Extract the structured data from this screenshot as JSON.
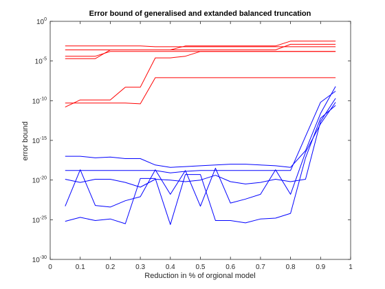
{
  "chart_data": {
    "type": "line",
    "title": "Error bound of generalised and extanded balanced truncation",
    "xlabel": "Reduction in % of orgional model",
    "ylabel": "error bound",
    "xlim": [
      0,
      1
    ],
    "ylim_exponent": [
      -30,
      0
    ],
    "yscale": "log",
    "x_ticks": [
      "0",
      "0.1",
      "0.2",
      "0.3",
      "0.4",
      "0.5",
      "0.6",
      "0.7",
      "0.8",
      "0.9",
      "1"
    ],
    "y_ticks": [
      {
        "base": "10",
        "exp": "0"
      },
      {
        "base": "10",
        "exp": "-5"
      },
      {
        "base": "10",
        "exp": "-10"
      },
      {
        "base": "10",
        "exp": "-15"
      },
      {
        "base": "10",
        "exp": "-20"
      },
      {
        "base": "10",
        "exp": "-25"
      },
      {
        "base": "10",
        "exp": "-30"
      }
    ],
    "grid": false,
    "legend": "none",
    "x": [
      0.05,
      0.1,
      0.15,
      0.2,
      0.25,
      0.3,
      0.35,
      0.4,
      0.45,
      0.5,
      0.55,
      0.6,
      0.65,
      0.7,
      0.75,
      0.8,
      0.85,
      0.9,
      0.95
    ],
    "series": [
      {
        "color": "#ff0000",
        "log10_values": [
          -3.1,
          -3.1,
          -3.1,
          -3.1,
          -3.1,
          -3.1,
          -3.2,
          -3.2,
          -3.2,
          -3.2,
          -3.2,
          -3.2,
          -3.2,
          -3.2,
          -3.2,
          -3.2,
          -3.2,
          -3.2,
          -3.2
        ]
      },
      {
        "color": "#ff0000",
        "log10_values": [
          -3.6,
          -3.6,
          -3.6,
          -3.6,
          -3.6,
          -3.6,
          -3.6,
          -3.6,
          -3.1,
          -3.1,
          -3.1,
          -3.1,
          -3.1,
          -3.1,
          -3.1,
          -2.5,
          -2.5,
          -2.5,
          -2.5
        ]
      },
      {
        "color": "#ff0000",
        "log10_values": [
          -4.4,
          -4.4,
          -4.4,
          -3.8,
          -3.8,
          -3.8,
          -3.8,
          -3.8,
          -3.8,
          -3.8,
          -3.8,
          -3.8,
          -3.8,
          -3.8,
          -3.8,
          -3.8,
          -3.8,
          -3.8,
          -3.8
        ]
      },
      {
        "color": "#ff0000",
        "log10_values": [
          -4.7,
          -4.7,
          -4.7,
          -3.6,
          -3.6,
          -3.6,
          -3.6,
          -3.6,
          -3.6,
          -3.6,
          -3.6,
          -3.6,
          -3.6,
          -3.6,
          -3.6,
          -2.9,
          -2.9,
          -2.9,
          -2.9
        ]
      },
      {
        "color": "#ff0000",
        "log10_values": [
          -10.8,
          -9.9,
          -9.9,
          -9.9,
          -8.3,
          -8.3,
          -4.6,
          -4.6,
          -4.4,
          -3.8,
          -3.8,
          -3.8,
          -3.8,
          -3.8,
          -3.8,
          -3.8,
          -3.8,
          -3.8,
          -3.8
        ]
      },
      {
        "color": "#ff0000",
        "log10_values": [
          -10.3,
          -10.3,
          -10.3,
          -10.3,
          -10.3,
          -10.4,
          -7.1,
          -7.1,
          -7.1,
          -7.1,
          -7.1,
          -7.1,
          -7.1,
          -7.1,
          -7.1,
          -7.1,
          -7.1,
          -7.1,
          -7.1
        ]
      },
      {
        "color": "#0000ff",
        "log10_values": [
          -17.0,
          -17.0,
          -17.2,
          -17.1,
          -17.3,
          -17.3,
          -18.1,
          -18.4,
          -18.3,
          -18.2,
          -18.1,
          -18.0,
          -18.0,
          -18.1,
          -18.2,
          -18.4,
          -16.3,
          -11.6,
          -8.2
        ]
      },
      {
        "color": "#0000ff",
        "log10_values": [
          -18.8,
          -18.8,
          -18.8,
          -18.8,
          -18.8,
          -18.8,
          -18.8,
          -19.1,
          -18.9,
          -18.8,
          -18.8,
          -18.8,
          -18.8,
          -18.8,
          -18.8,
          -18.8,
          -14.5,
          -10.2,
          -8.8
        ]
      },
      {
        "color": "#0000ff",
        "log10_values": [
          -19.9,
          -20.3,
          -19.9,
          -19.9,
          -20.3,
          -20.9,
          -19.9,
          -20.0,
          -20.2,
          -20.0,
          -19.4,
          -20.2,
          -20.5,
          -20.3,
          -19.9,
          -20.2,
          -19.9,
          -12.6,
          -9.7
        ]
      },
      {
        "color": "#0000ff",
        "log10_values": [
          -23.3,
          -18.7,
          -23.2,
          -23.4,
          -22.6,
          -22.1,
          -18.7,
          -21.8,
          -18.8,
          -23.3,
          -18.5,
          -22.9,
          -22.4,
          -21.8,
          -18.7,
          -21.8,
          -16.5,
          -12.9,
          -10.2
        ]
      },
      {
        "color": "#0000ff",
        "log10_values": [
          -25.2,
          -24.7,
          -25.1,
          -24.9,
          -25.5,
          -19.8,
          -19.8,
          -25.6,
          -19.3,
          -19.3,
          -25.1,
          -25.1,
          -25.4,
          -24.9,
          -24.8,
          -24.2,
          -17.2,
          -12.2,
          -10.6
        ]
      }
    ]
  }
}
